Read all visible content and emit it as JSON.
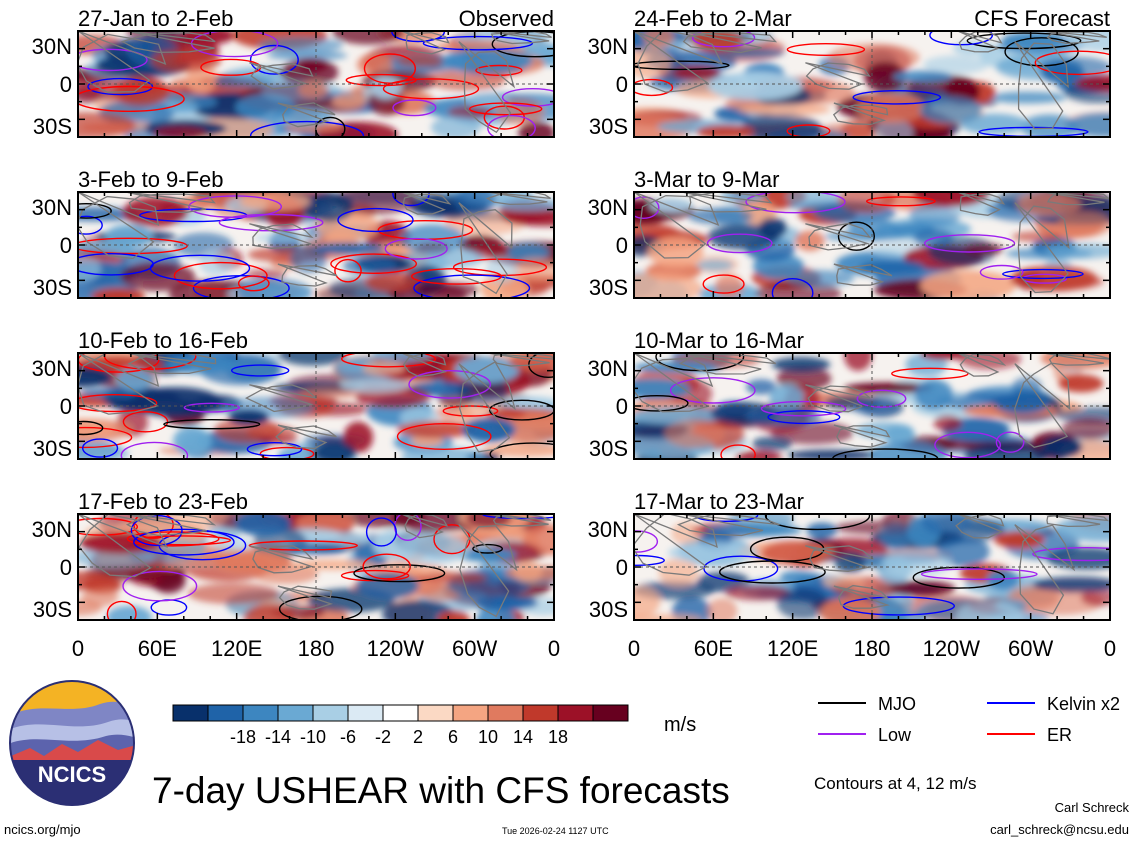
{
  "chart_data": {
    "type": "heatmap",
    "title": "7-day USHEAR with CFS forecasts",
    "variable": "USHEAR",
    "units": "m/s",
    "contour_note": "Contours at 4, 12 m/s",
    "latitude_ticks": [
      "30N",
      "0",
      "30S"
    ],
    "longitude_ticks": [
      "0",
      "60E",
      "120E",
      "180",
      "120W",
      "60W",
      "0"
    ],
    "colorbar": {
      "ticks": [
        "-18",
        "-14",
        "-10",
        "-6",
        "-2",
        "2",
        "6",
        "10",
        "14",
        "18"
      ],
      "colors": [
        "#08306b",
        "#1f63a8",
        "#3d86c0",
        "#6aa9d3",
        "#a9cfe5",
        "#dbeaf4",
        "#ffffff",
        "#fbd9c4",
        "#f4a582",
        "#e07a5f",
        "#c0392b",
        "#9c1127",
        "#67001f"
      ]
    },
    "legend": [
      {
        "label": "MJO",
        "color": "#000000"
      },
      {
        "label": "Kelvin x2",
        "color": "#0000ff"
      },
      {
        "label": "Low",
        "color": "#a020f0"
      },
      {
        "label": "ER",
        "color": "#ff0000"
      }
    ],
    "panels": [
      {
        "column": "left",
        "title": "27-Jan to 2-Feb",
        "tag": "Observed"
      },
      {
        "column": "left",
        "title": "3-Feb to 9-Feb",
        "tag": ""
      },
      {
        "column": "left",
        "title": "10-Feb to 16-Feb",
        "tag": ""
      },
      {
        "column": "left",
        "title": "17-Feb to 23-Feb",
        "tag": ""
      },
      {
        "column": "right",
        "title": "24-Feb to 2-Mar",
        "tag": "CFS Forecast"
      },
      {
        "column": "right",
        "title": "3-Mar to 9-Mar",
        "tag": ""
      },
      {
        "column": "right",
        "title": "10-Mar to 16-Mar",
        "tag": ""
      },
      {
        "column": "right",
        "title": "17-Mar to 23-Mar",
        "tag": ""
      }
    ]
  },
  "logo": {
    "text": "NCICS"
  },
  "footer": {
    "url": "ncics.org/mjo",
    "timestamp": "Tue 2026-02-24 1127 UTC",
    "author": "Carl Schreck",
    "email": "carl_schreck@ncsu.edu"
  }
}
